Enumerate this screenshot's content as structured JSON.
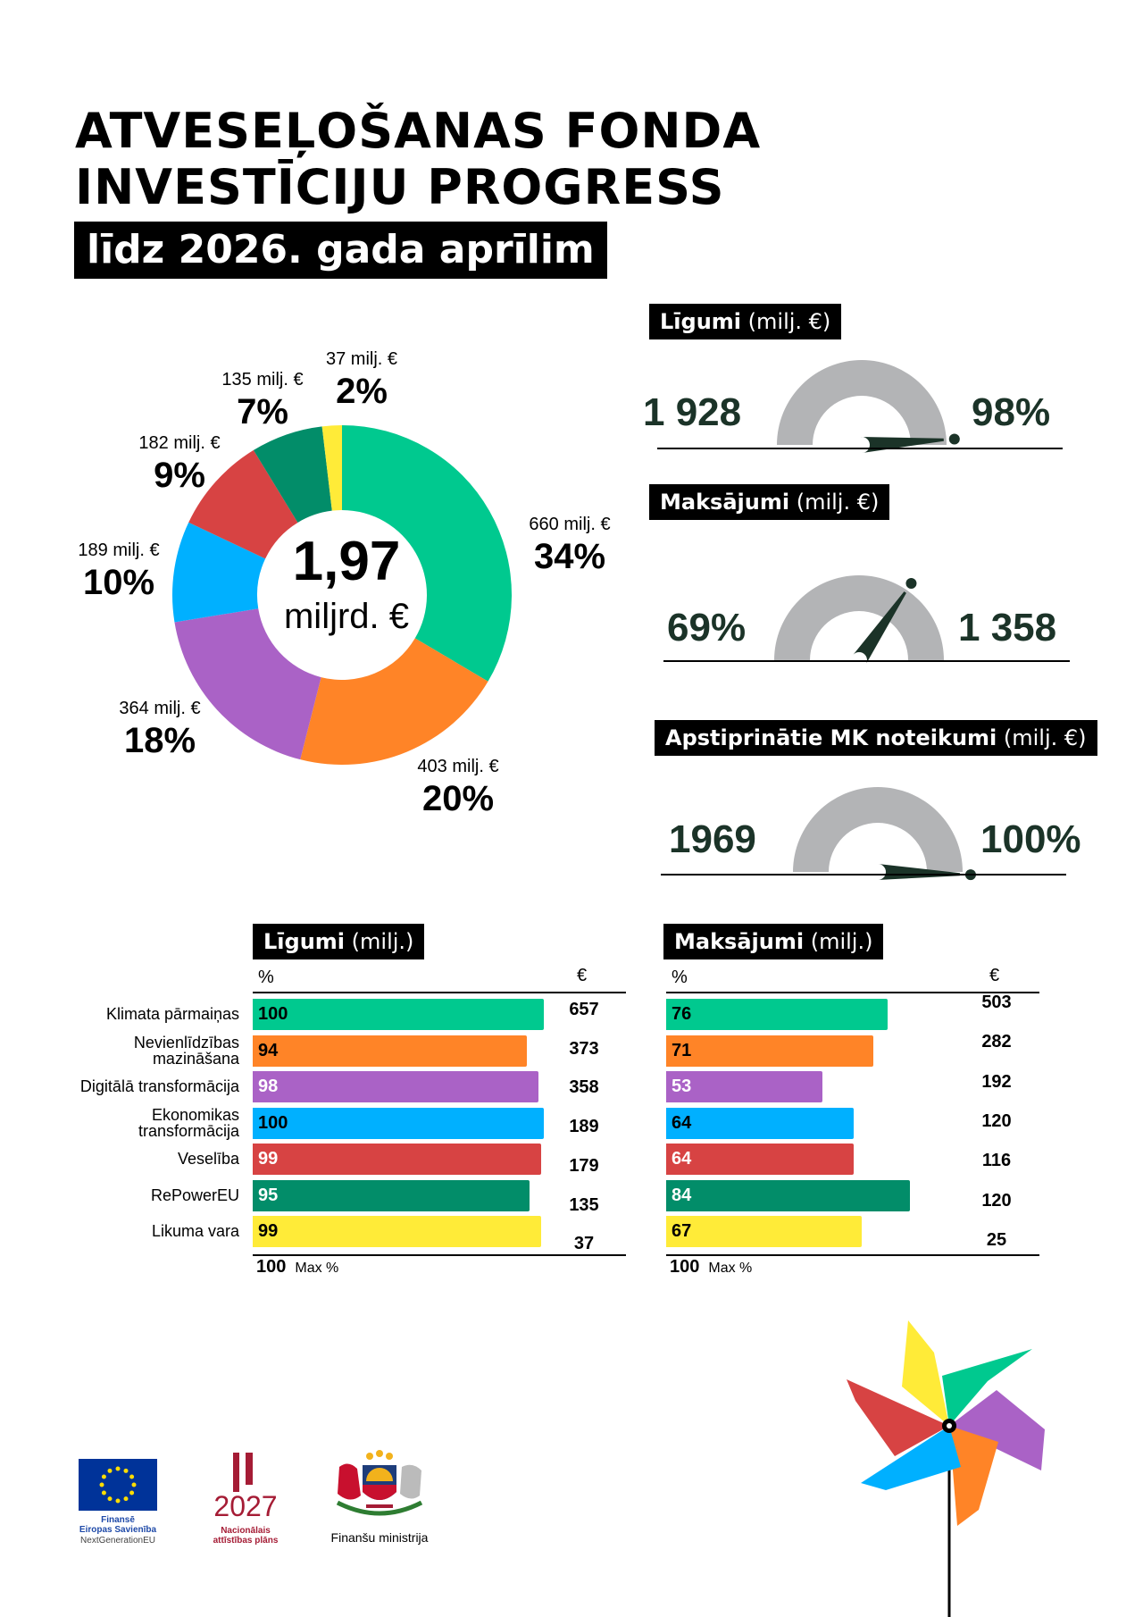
{
  "title": {
    "line1": "ATVESEĻOŠANAS FONDA",
    "line2": "INVESTĪCIJU PROGRESS",
    "subtitle": "līdz 2026. gada aprīlim"
  },
  "colors": {
    "climate": "#00c98f",
    "inequality": "#ff8427",
    "digital": "#aa62c6",
    "economy": "#00b0ff",
    "health": "#d74343",
    "repower": "#028d69",
    "law": "#ffeb38",
    "gauge_track": "#b3b4b6",
    "gauge_needle": "#1b3328"
  },
  "chart_data": [
    {
      "type": "pie",
      "center_value": "1,97",
      "center_unit": "miljrd. €",
      "slices": [
        {
          "value": 660,
          "value_label": "660 milj. €",
          "percent_label": "34%",
          "color": "#00c98f"
        },
        {
          "value": 403,
          "value_label": "403 milj. €",
          "percent_label": "20%",
          "color": "#ff8427"
        },
        {
          "value": 364,
          "value_label": "364 milj. €",
          "percent_label": "18%",
          "color": "#aa62c6"
        },
        {
          "value": 189,
          "value_label": "189 milj. €",
          "percent_label": "10%",
          "color": "#00b0ff"
        },
        {
          "value": 182,
          "value_label": "182 milj. €",
          "percent_label": "9%",
          "color": "#d74343"
        },
        {
          "value": 135,
          "value_label": "135 milj. €",
          "percent_label": "7%",
          "color": "#028d69"
        },
        {
          "value": 37,
          "value_label": "37 milj. €",
          "percent_label": "2%",
          "color": "#ffeb38"
        }
      ]
    },
    {
      "type": "gauge",
      "title_bold": "Līgumi",
      "title_unit": "(milj. €)",
      "amount": "1 928",
      "percent": 98,
      "percent_label": "98%"
    },
    {
      "type": "gauge",
      "title_bold": "Maksājumi",
      "title_unit": "(milj. €)",
      "amount": "1 358",
      "percent": 69,
      "percent_label": "69%"
    },
    {
      "type": "gauge",
      "title_bold": "Apstiprinātie MK noteikumi",
      "title_unit": "(milj. €)",
      "amount": "1969",
      "percent": 100,
      "percent_label": "100%"
    },
    {
      "type": "bar",
      "title_bold": "Līgumi",
      "title_unit": "(milj.)",
      "col_percent": "%",
      "col_euro": "€",
      "categories": [
        "Klimata pārmaiņas",
        "Nevienlīdzības\nmazināšana",
        "Digitālā transformācija",
        "Ekonomikas\ntransformācija",
        "Veselība",
        "RePowerEU",
        "Likuma vara"
      ],
      "percent": [
        100,
        94,
        98,
        100,
        99,
        95,
        99
      ],
      "euro": [
        657,
        373,
        358,
        189,
        179,
        135,
        37
      ],
      "max": "100",
      "max_label": "Max %",
      "xlim": [
        0,
        100
      ]
    },
    {
      "type": "bar",
      "title_bold": "Maksājumi",
      "title_unit": "(milj.)",
      "col_percent": "%",
      "col_euro": "€",
      "percent": [
        76,
        71,
        53,
        64,
        64,
        84,
        67
      ],
      "euro": [
        503,
        282,
        192,
        120,
        116,
        120,
        25
      ],
      "max": "100",
      "max_label": "Max %",
      "xlim": [
        0,
        100
      ]
    }
  ],
  "logos": {
    "eu": {
      "line1": "Finansē",
      "line2": "Eiropas Savienība",
      "line3": "NextGenerationEU"
    },
    "nap": {
      "year": "2027",
      "line1": "Nacionālais",
      "line2": "attīstības plāns"
    },
    "ministry": {
      "name": "Finanšu ministrija"
    }
  }
}
